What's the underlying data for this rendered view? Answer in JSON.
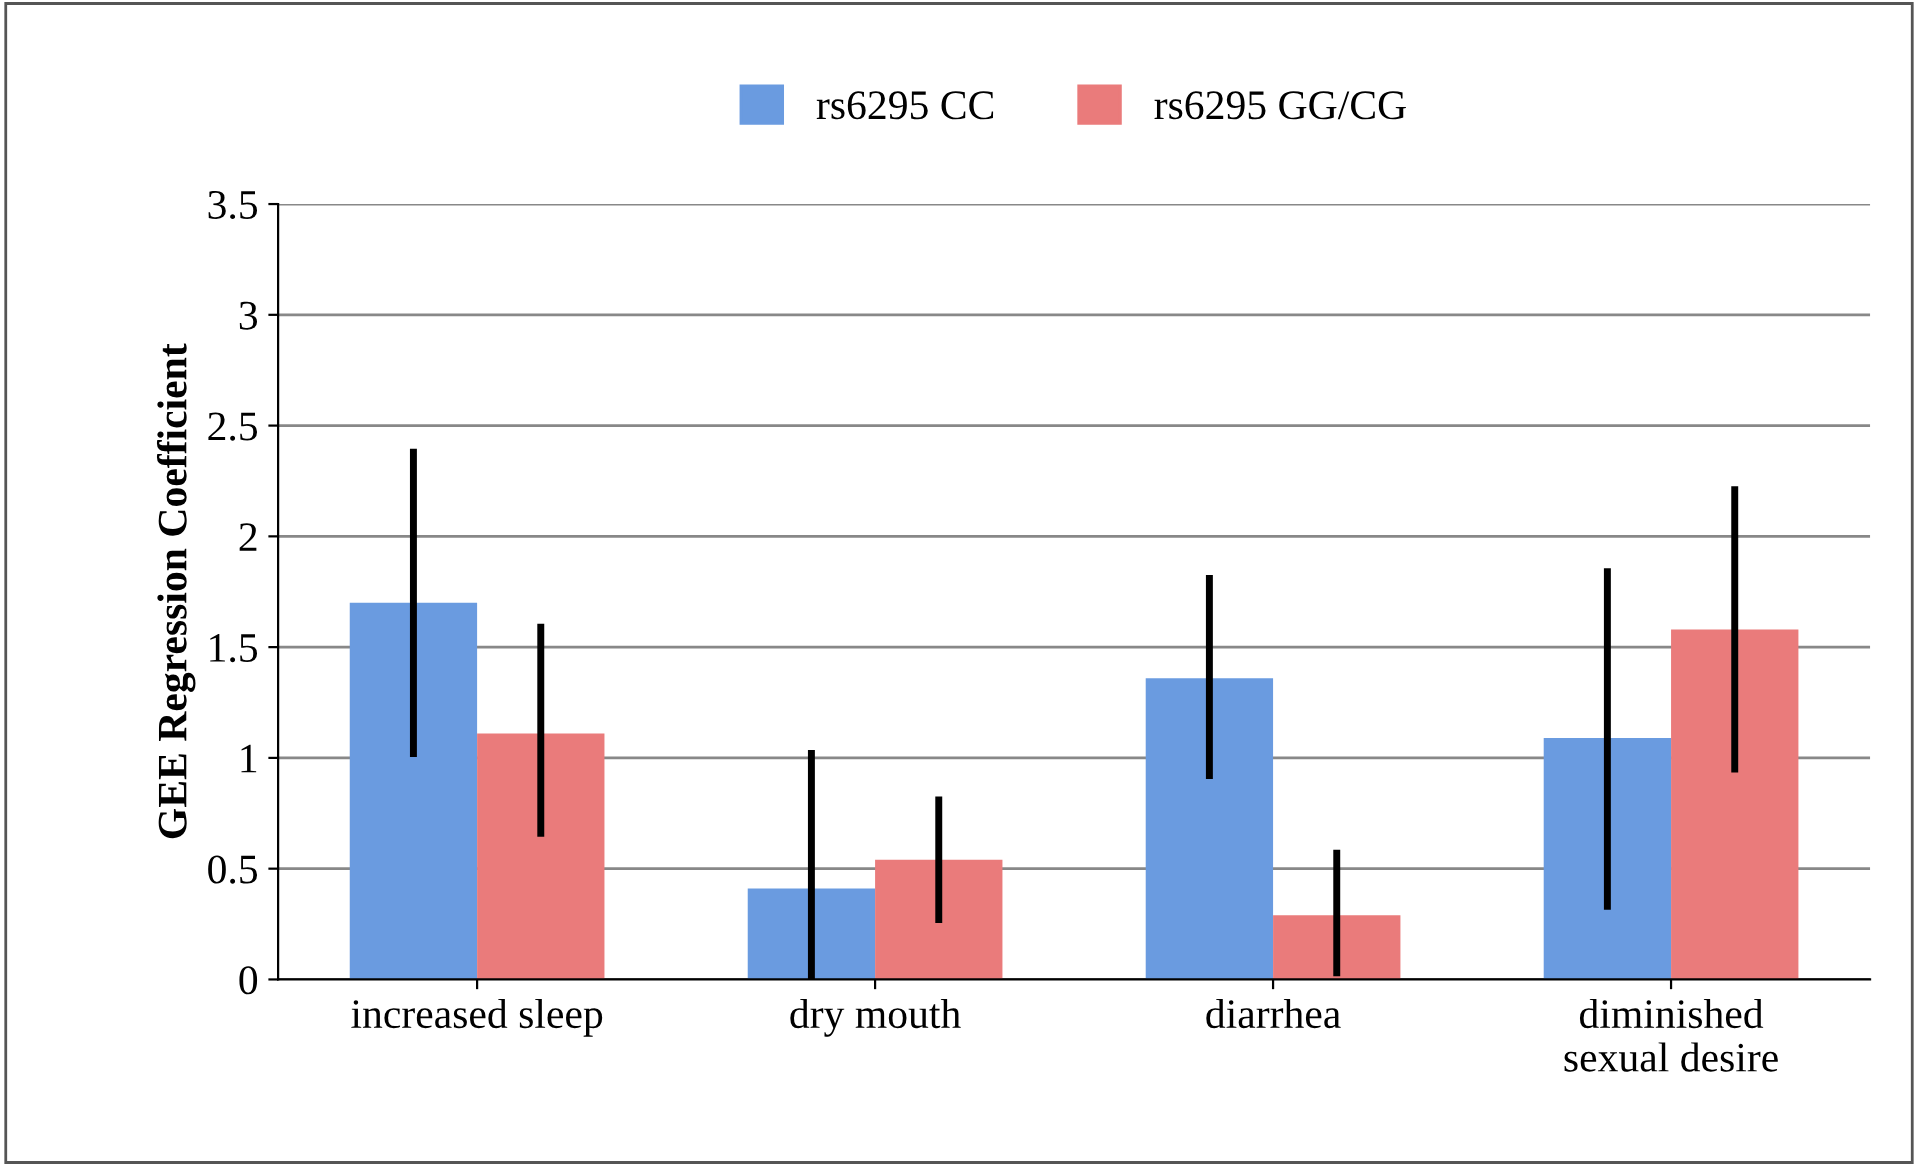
{
  "chart_data": {
    "type": "bar",
    "ylabel": "GEE Regression Coefficient",
    "categories": [
      "increased sleep",
      "dry mouth",
      "diarrhea",
      "diminished\nsexual desire"
    ],
    "series": [
      {
        "name": "rs6295 CC",
        "color": "#6a9be0",
        "values": [
          1.7,
          0.41,
          1.36,
          1.09
        ],
        "errors": [
          [
            1.02,
            2.38
          ],
          [
            0,
            1.02
          ],
          [
            0.92,
            1.81
          ],
          [
            0.33,
            1.84
          ]
        ]
      },
      {
        "name": "rs6295 GG/CG",
        "color": "#ea7b7b",
        "values": [
          1.11,
          0.54,
          0.29,
          1.58
        ],
        "errors": [
          [
            0.66,
            1.59
          ],
          [
            0.27,
            0.81
          ],
          [
            0.03,
            0.57
          ],
          [
            0.95,
            2.21
          ]
        ]
      }
    ],
    "ylim": [
      0,
      3.5
    ],
    "yticks": [
      0,
      0.5,
      1,
      1.5,
      2,
      2.5,
      3,
      3.5
    ],
    "grid": "y",
    "legend": "top"
  }
}
